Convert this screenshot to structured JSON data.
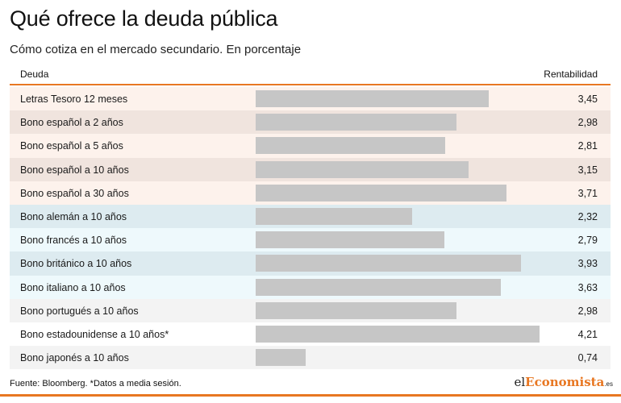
{
  "header": {
    "title": "Qué ofrece la deuda pública",
    "subtitle": "Cómo cotiza en el mercado secundario. En porcentaje"
  },
  "table": {
    "col_left": "Deuda",
    "col_right": "Rentabilidad"
  },
  "colors": {
    "accent": "#e87722",
    "bar": "#c6c6c6",
    "row_spanish_a": "#fdf2ec",
    "row_spanish_b": "#f0e4de",
    "row_foreign_a": "#eef9fc",
    "row_foreign_b": "#ddebf0",
    "row_other_a": "#f3f3f3",
    "row_other_b": "#ffffff"
  },
  "chart_data": {
    "type": "bar",
    "orientation": "horizontal",
    "categories": [
      "Letras Tesoro 12 meses",
      "Bono español a 2 años",
      "Bono español a 5 años",
      "Bono español a 10 años",
      "Bono español a 30 años",
      "Bono alemán a 10 años",
      "Bono francés a 10 años",
      "Bono británico a 10 años",
      "Bono italiano a 10 años",
      "Bono portugués a 10 años",
      "Bono estadounidense a 10 años*",
      "Bono japonés a 10 años"
    ],
    "values": [
      3.45,
      2.98,
      2.81,
      3.15,
      3.71,
      2.32,
      2.79,
      3.93,
      3.63,
      2.98,
      4.21,
      0.74
    ],
    "value_labels": [
      "3,45",
      "2,98",
      "2,81",
      "3,15",
      "3,71",
      "2,32",
      "2,79",
      "3,93",
      "3,63",
      "2,98",
      "4,21",
      "0,74"
    ],
    "row_groups": [
      "spanish_a",
      "spanish_b",
      "spanish_a",
      "spanish_b",
      "spanish_a",
      "foreign_b",
      "foreign_a",
      "foreign_b",
      "foreign_a",
      "other_a",
      "other_b",
      "other_a"
    ],
    "xlim": [
      0,
      4.3
    ],
    "grid": false,
    "legend": "none"
  },
  "footer": {
    "source": "Fuente: Bloomberg. *Datos a media sesión.",
    "logo_prefix": "el",
    "logo_accent": "Economista",
    "logo_suffix": ".es"
  }
}
